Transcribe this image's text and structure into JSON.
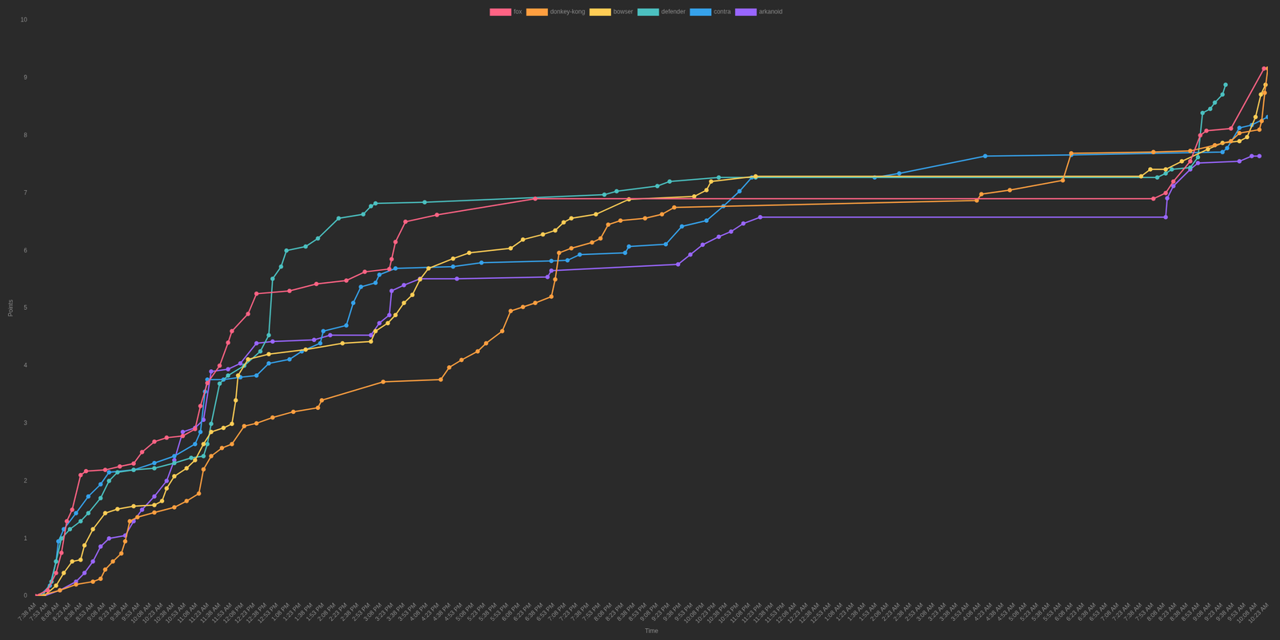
{
  "chart_data": {
    "type": "line",
    "x_label": "Time",
    "y_label": "Points",
    "legend": "top",
    "grid": false,
    "marker": "circle",
    "line_style": "solid",
    "xlim": [
      458,
      2063
    ],
    "ylim": [
      0,
      10
    ],
    "yticks": [
      0,
      1,
      2,
      3,
      4,
      5,
      6,
      7,
      8,
      9,
      10
    ],
    "xticks": [
      {
        "value": 458,
        "label": "7:38 AM"
      },
      {
        "value": 473,
        "label": "7:53 AM"
      },
      {
        "value": 488,
        "label": "8:08 AM"
      },
      {
        "value": 503,
        "label": "8:23 AM"
      },
      {
        "value": 518,
        "label": "8:38 AM"
      },
      {
        "value": 533,
        "label": "8:53 AM"
      },
      {
        "value": 548,
        "label": "9:08 AM"
      },
      {
        "value": 563,
        "label": "9:23 AM"
      },
      {
        "value": 578,
        "label": "9:38 AM"
      },
      {
        "value": 593,
        "label": "9:53 AM"
      },
      {
        "value": 608,
        "label": "10:08 AM"
      },
      {
        "value": 623,
        "label": "10:23 AM"
      },
      {
        "value": 638,
        "label": "10:38 AM"
      },
      {
        "value": 653,
        "label": "10:53 AM"
      },
      {
        "value": 668,
        "label": "11:08 AM"
      },
      {
        "value": 683,
        "label": "11:23 AM"
      },
      {
        "value": 698,
        "label": "11:38 AM"
      },
      {
        "value": 713,
        "label": "11:53 AM"
      },
      {
        "value": 728,
        "label": "12:08 PM"
      },
      {
        "value": 743,
        "label": "12:23 PM"
      },
      {
        "value": 758,
        "label": "12:38 PM"
      },
      {
        "value": 773,
        "label": "12:53 PM"
      },
      {
        "value": 788,
        "label": "1:08 PM"
      },
      {
        "value": 803,
        "label": "1:23 PM"
      },
      {
        "value": 818,
        "label": "1:38 PM"
      },
      {
        "value": 833,
        "label": "1:53 PM"
      },
      {
        "value": 848,
        "label": "2:08 PM"
      },
      {
        "value": 863,
        "label": "2:23 PM"
      },
      {
        "value": 878,
        "label": "2:38 PM"
      },
      {
        "value": 893,
        "label": "2:53 PM"
      },
      {
        "value": 908,
        "label": "3:08 PM"
      },
      {
        "value": 923,
        "label": "3:23 PM"
      },
      {
        "value": 938,
        "label": "3:38 PM"
      },
      {
        "value": 953,
        "label": "3:53 PM"
      },
      {
        "value": 968,
        "label": "4:08 PM"
      },
      {
        "value": 983,
        "label": "4:23 PM"
      },
      {
        "value": 998,
        "label": "4:38 PM"
      },
      {
        "value": 1013,
        "label": "4:53 PM"
      },
      {
        "value": 1028,
        "label": "5:08 PM"
      },
      {
        "value": 1043,
        "label": "5:23 PM"
      },
      {
        "value": 1058,
        "label": "5:38 PM"
      },
      {
        "value": 1073,
        "label": "5:53 PM"
      },
      {
        "value": 1088,
        "label": "6:08 PM"
      },
      {
        "value": 1103,
        "label": "6:23 PM"
      },
      {
        "value": 1118,
        "label": "6:38 PM"
      },
      {
        "value": 1133,
        "label": "6:53 PM"
      },
      {
        "value": 1148,
        "label": "7:08 PM"
      },
      {
        "value": 1163,
        "label": "7:23 PM"
      },
      {
        "value": 1178,
        "label": "7:38 PM"
      },
      {
        "value": 1193,
        "label": "7:53 PM"
      },
      {
        "value": 1208,
        "label": "8:08 PM"
      },
      {
        "value": 1223,
        "label": "8:23 PM"
      },
      {
        "value": 1238,
        "label": "8:38 PM"
      },
      {
        "value": 1253,
        "label": "8:53 PM"
      },
      {
        "value": 1268,
        "label": "9:08 PM"
      },
      {
        "value": 1283,
        "label": "9:23 PM"
      },
      {
        "value": 1298,
        "label": "9:38 PM"
      },
      {
        "value": 1313,
        "label": "9:53 PM"
      },
      {
        "value": 1328,
        "label": "10:08 PM"
      },
      {
        "value": 1343,
        "label": "10:23 PM"
      },
      {
        "value": 1358,
        "label": "10:38 PM"
      },
      {
        "value": 1373,
        "label": "10:53 PM"
      },
      {
        "value": 1388,
        "label": "11:08 PM"
      },
      {
        "value": 1403,
        "label": "11:23 PM"
      },
      {
        "value": 1418,
        "label": "11:38 PM"
      },
      {
        "value": 1433,
        "label": "11:53 PM"
      },
      {
        "value": 1448,
        "label": "12:08 AM"
      },
      {
        "value": 1463,
        "label": "12:23 AM"
      },
      {
        "value": 1478,
        "label": "12:38 AM"
      },
      {
        "value": 1493,
        "label": "12:53 AM"
      },
      {
        "value": 1508,
        "label": "1:08 AM"
      },
      {
        "value": 1523,
        "label": "1:23 AM"
      },
      {
        "value": 1538,
        "label": "1:38 AM"
      },
      {
        "value": 1553,
        "label": "1:53 AM"
      },
      {
        "value": 1568,
        "label": "2:08 AM"
      },
      {
        "value": 1583,
        "label": "2:23 AM"
      },
      {
        "value": 1598,
        "label": "2:38 AM"
      },
      {
        "value": 1613,
        "label": "2:53 AM"
      },
      {
        "value": 1628,
        "label": "3:08 AM"
      },
      {
        "value": 1643,
        "label": "3:23 AM"
      },
      {
        "value": 1658,
        "label": "3:38 AM"
      },
      {
        "value": 1673,
        "label": "3:53 AM"
      },
      {
        "value": 1688,
        "label": "4:08 AM"
      },
      {
        "value": 1703,
        "label": "4:23 AM"
      },
      {
        "value": 1718,
        "label": "4:38 AM"
      },
      {
        "value": 1733,
        "label": "4:53 AM"
      },
      {
        "value": 1748,
        "label": "5:08 AM"
      },
      {
        "value": 1763,
        "label": "5:23 AM"
      },
      {
        "value": 1778,
        "label": "5:38 AM"
      },
      {
        "value": 1793,
        "label": "5:53 AM"
      },
      {
        "value": 1808,
        "label": "6:08 AM"
      },
      {
        "value": 1823,
        "label": "6:23 AM"
      },
      {
        "value": 1838,
        "label": "6:38 AM"
      },
      {
        "value": 1853,
        "label": "6:53 AM"
      },
      {
        "value": 1868,
        "label": "7:08 AM"
      },
      {
        "value": 1883,
        "label": "7:23 AM"
      },
      {
        "value": 1898,
        "label": "7:38 AM"
      },
      {
        "value": 1913,
        "label": "7:53 AM"
      },
      {
        "value": 1928,
        "label": "8:08 AM"
      },
      {
        "value": 1943,
        "label": "8:23 AM"
      },
      {
        "value": 1958,
        "label": "8:38 AM"
      },
      {
        "value": 1973,
        "label": "8:53 AM"
      },
      {
        "value": 1988,
        "label": "9:08 AM"
      },
      {
        "value": 2003,
        "label": "9:23 AM"
      },
      {
        "value": 2018,
        "label": "9:38 AM"
      },
      {
        "value": 2033,
        "label": "9:53 AM"
      },
      {
        "value": 2048,
        "label": "10:08 AM"
      },
      {
        "value": 2063,
        "label": "10:23 AM"
      }
    ],
    "series": [
      {
        "name": "fox",
        "color": "#ff6384",
        "x": [
          458,
          474,
          485,
          492,
          499,
          506,
          517,
          524,
          549,
          568,
          586,
          597,
          613,
          629,
          650,
          666,
          673,
          682,
          698,
          709,
          714,
          735,
          746,
          789,
          824,
          863,
          887,
          919,
          922,
          927,
          940,
          981,
          1109,
          1914,
          1930,
          1940,
          1962,
          1975,
          1983,
          2015,
          2058
        ],
        "values": [
          0,
          0.1,
          0.4,
          0.75,
          1.3,
          1.5,
          2.1,
          2.17,
          2.19,
          2.25,
          2.3,
          2.5,
          2.68,
          2.75,
          2.78,
          2.9,
          3.3,
          3.7,
          4.0,
          4.4,
          4.6,
          4.9,
          5.25,
          5.3,
          5.42,
          5.48,
          5.63,
          5.68,
          5.85,
          6.15,
          6.5,
          6.62,
          6.9,
          6.9,
          7.0,
          7.2,
          7.55,
          8.0,
          8.08,
          8.12,
          9.16
        ]
      },
      {
        "name": "donkey-kong",
        "color": "#ff9f40",
        "x": [
          463,
          490,
          511,
          533,
          543,
          549,
          559,
          570,
          575,
          581,
          591,
          613,
          639,
          655,
          671,
          677,
          687,
          701,
          714,
          730,
          746,
          767,
          794,
          826,
          831,
          911,
          986,
          997,
          1013,
          1034,
          1045,
          1066,
          1077,
          1093,
          1109,
          1130,
          1135,
          1140,
          1156,
          1183,
          1194,
          1204,
          1220,
          1252,
          1274,
          1290,
          1684,
          1690,
          1727,
          1796,
          1807,
          1914,
          1962,
          1994,
          2015,
          2026,
          2052,
          2055,
          2059,
          2063
        ],
        "values": [
          0,
          0.1,
          0.2,
          0.25,
          0.3,
          0.46,
          0.6,
          0.74,
          0.95,
          1.3,
          1.37,
          1.45,
          1.54,
          1.65,
          1.78,
          2.2,
          2.43,
          2.57,
          2.64,
          2.95,
          3.0,
          3.1,
          3.2,
          3.27,
          3.4,
          3.72,
          3.76,
          3.97,
          4.1,
          4.25,
          4.39,
          4.6,
          4.95,
          5.02,
          5.09,
          5.2,
          5.5,
          5.96,
          6.04,
          6.14,
          6.21,
          6.45,
          6.52,
          6.56,
          6.63,
          6.75,
          6.87,
          6.98,
          7.05,
          7.22,
          7.69,
          7.71,
          7.73,
          7.83,
          7.9,
          8.04,
          8.1,
          8.25,
          8.74,
          9.16
        ]
      },
      {
        "name": "bowser",
        "color": "#ffcd56",
        "x": [
          469,
          485,
          495,
          506,
          517,
          522,
          533,
          549,
          565,
          586,
          613,
          623,
          629,
          639,
          655,
          666,
          677,
          687,
          703,
          714,
          719,
          722,
          735,
          762,
          810,
          858,
          895,
          901,
          917,
          927,
          938,
          949,
          959,
          970,
          1002,
          1023,
          1077,
          1093,
          1119,
          1135,
          1146,
          1156,
          1188,
          1231,
          1316,
          1332,
          1338,
          1396,
          1898,
          1910,
          1930,
          1951,
          1985,
          2004,
          2026,
          2036,
          2047,
          2054,
          2060
        ],
        "values": [
          0,
          0.18,
          0.4,
          0.6,
          0.63,
          0.88,
          1.16,
          1.44,
          1.51,
          1.56,
          1.58,
          1.65,
          1.87,
          2.08,
          2.22,
          2.36,
          2.64,
          2.85,
          2.92,
          2.99,
          3.4,
          3.83,
          4.11,
          4.2,
          4.28,
          4.39,
          4.42,
          4.6,
          4.74,
          4.88,
          5.09,
          5.23,
          5.5,
          5.69,
          5.86,
          5.96,
          6.04,
          6.19,
          6.28,
          6.35,
          6.49,
          6.56,
          6.63,
          6.89,
          6.94,
          7.05,
          7.2,
          7.29,
          7.29,
          7.41,
          7.41,
          7.55,
          7.76,
          7.87,
          7.9,
          7.97,
          8.32,
          8.71,
          8.88
        ]
      },
      {
        "name": "defender",
        "color": "#4bc0c0",
        "x": [
          467,
          479,
          485,
          492,
          503,
          517,
          527,
          543,
          554,
          565,
          586,
          613,
          639,
          661,
          677,
          682,
          687,
          698,
          709,
          730,
          751,
          762,
          767,
          778,
          785,
          810,
          826,
          853,
          885,
          895,
          901,
          965,
          1199,
          1215,
          1268,
          1284,
          1348,
          1396,
          1919,
          1930,
          1938,
          1962,
          1972,
          1978,
          1988,
          1994,
          2004,
          2008
        ],
        "values": [
          0,
          0.25,
          0.6,
          1.0,
          1.16,
          1.3,
          1.44,
          1.7,
          2.0,
          2.15,
          2.19,
          2.22,
          2.31,
          2.4,
          2.43,
          2.64,
          2.99,
          3.69,
          3.83,
          4.0,
          4.25,
          4.53,
          5.51,
          5.72,
          6.0,
          6.07,
          6.21,
          6.56,
          6.63,
          6.77,
          6.82,
          6.84,
          6.97,
          7.03,
          7.12,
          7.2,
          7.27,
          7.27,
          7.27,
          7.34,
          7.41,
          7.44,
          7.62,
          8.39,
          8.46,
          8.57,
          8.71,
          8.88
        ]
      },
      {
        "name": "contra",
        "color": "#36a2eb",
        "x": [
          463,
          477,
          485,
          488,
          495,
          511,
          527,
          543,
          554,
          586,
          613,
          639,
          666,
          673,
          679,
          682,
          703,
          725,
          746,
          762,
          789,
          805,
          829,
          833,
          863,
          872,
          882,
          901,
          906,
          927,
          1002,
          1039,
          1130,
          1151,
          1167,
          1226,
          1231,
          1279,
          1300,
          1332,
          1354,
          1375,
          1391,
          1551,
          1583,
          1695,
          1807,
          2004,
          2010,
          2026,
          2042,
          2063
        ],
        "values": [
          0,
          0.18,
          0.6,
          0.95,
          1.16,
          1.44,
          1.73,
          1.94,
          2.15,
          2.19,
          2.31,
          2.43,
          2.64,
          2.85,
          3.55,
          3.76,
          3.76,
          3.8,
          3.83,
          4.04,
          4.11,
          4.25,
          4.39,
          4.6,
          4.7,
          5.09,
          5.37,
          5.44,
          5.58,
          5.69,
          5.72,
          5.79,
          5.82,
          5.83,
          5.93,
          5.96,
          6.07,
          6.11,
          6.42,
          6.52,
          6.77,
          7.03,
          7.27,
          7.27,
          7.34,
          7.64,
          7.66,
          7.71,
          7.78,
          8.13,
          8.18,
          8.32
        ]
      },
      {
        "name": "arkanoid",
        "color": "#9966ff",
        "x": [
          469,
          490,
          511,
          522,
          533,
          543,
          554,
          575,
          586,
          597,
          613,
          629,
          639,
          650,
          666,
          677,
          687,
          709,
          725,
          746,
          767,
          821,
          842,
          895,
          906,
          919,
          922,
          938,
          959,
          1007,
          1125,
          1130,
          1295,
          1311,
          1327,
          1348,
          1364,
          1380,
          1402,
          1930,
          1932,
          1940,
          1962,
          1972,
          2026,
          2042,
          2052
        ],
        "values": [
          0,
          0.1,
          0.25,
          0.4,
          0.6,
          0.86,
          1.0,
          1.05,
          1.3,
          1.5,
          1.73,
          2.0,
          2.36,
          2.85,
          2.92,
          3.06,
          3.9,
          3.94,
          4.04,
          4.39,
          4.42,
          4.45,
          4.53,
          4.53,
          4.74,
          4.88,
          5.3,
          5.4,
          5.51,
          5.51,
          5.54,
          5.65,
          5.76,
          5.93,
          6.1,
          6.24,
          6.33,
          6.47,
          6.58,
          6.58,
          6.91,
          7.12,
          7.41,
          7.52,
          7.55,
          7.64,
          7.64
        ]
      }
    ]
  }
}
